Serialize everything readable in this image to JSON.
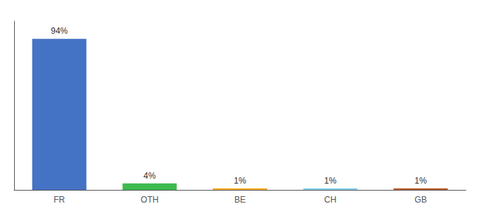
{
  "chart_data": {
    "type": "bar",
    "categories": [
      "FR",
      "OTH",
      "BE",
      "CH",
      "GB"
    ],
    "values": [
      94,
      4,
      1,
      1,
      1
    ],
    "value_labels": [
      "94%",
      "4%",
      "1%",
      "1%",
      "1%"
    ],
    "colors": [
      "#4472c4",
      "#3dba4e",
      "#f4a922",
      "#85cde8",
      "#b85c2a"
    ],
    "ylim": [
      0,
      105
    ],
    "grid": false,
    "data_labels": true,
    "tick_labels": "x"
  }
}
